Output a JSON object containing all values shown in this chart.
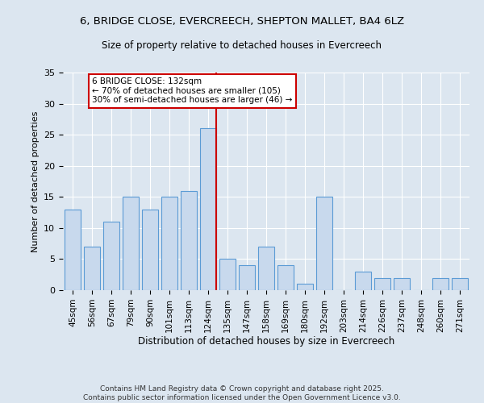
{
  "title_line1": "6, BRIDGE CLOSE, EVERCREECH, SHEPTON MALLET, BA4 6LZ",
  "title_line2": "Size of property relative to detached houses in Evercreech",
  "xlabel": "Distribution of detached houses by size in Evercreech",
  "ylabel": "Number of detached properties",
  "categories": [
    "45sqm",
    "56sqm",
    "67sqm",
    "79sqm",
    "90sqm",
    "101sqm",
    "113sqm",
    "124sqm",
    "135sqm",
    "147sqm",
    "158sqm",
    "169sqm",
    "180sqm",
    "192sqm",
    "203sqm",
    "214sqm",
    "226sqm",
    "237sqm",
    "248sqm",
    "260sqm",
    "271sqm"
  ],
  "values": [
    13,
    7,
    11,
    15,
    13,
    15,
    16,
    26,
    5,
    4,
    7,
    4,
    1,
    15,
    0,
    3,
    2,
    2,
    0,
    2,
    2
  ],
  "bar_color": "#c8d9ed",
  "bar_edge_color": "#5b9bd5",
  "highlight_index": 7,
  "highlight_line_color": "#cc0000",
  "annotation_text": "6 BRIDGE CLOSE: 132sqm\n← 70% of detached houses are smaller (105)\n30% of semi-detached houses are larger (46) →",
  "annotation_box_color": "#ffffff",
  "annotation_box_edge_color": "#cc0000",
  "bg_color": "#dce6f0",
  "plot_bg_color": "#dce6f0",
  "footer": "Contains HM Land Registry data © Crown copyright and database right 2025.\nContains public sector information licensed under the Open Government Licence v3.0.",
  "ylim": [
    0,
    35
  ],
  "yticks": [
    0,
    5,
    10,
    15,
    20,
    25,
    30,
    35
  ]
}
